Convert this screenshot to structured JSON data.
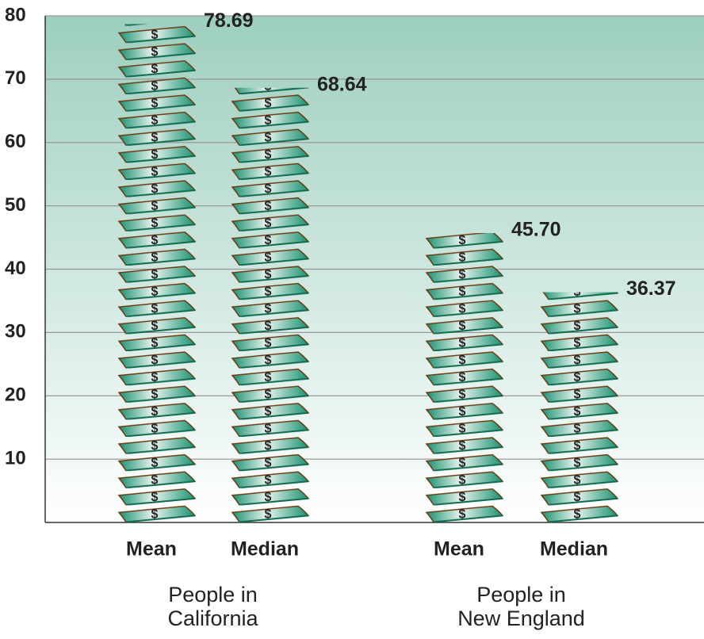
{
  "chart_data": {
    "type": "bar",
    "categories": [
      "Mean",
      "Median",
      "Mean",
      "Median"
    ],
    "group_labels": [
      [
        "People in",
        "California"
      ],
      [
        "People in",
        "New England"
      ]
    ],
    "values": [
      78.69,
      68.64,
      45.7,
      36.37
    ],
    "value_labels": [
      "78.69",
      "68.64",
      "45.70",
      "36.37"
    ],
    "color": "#1a9070",
    "ylim": [
      0,
      80
    ],
    "yticks": [
      10,
      20,
      30,
      40,
      50,
      60,
      70,
      80
    ],
    "grid": true
  }
}
